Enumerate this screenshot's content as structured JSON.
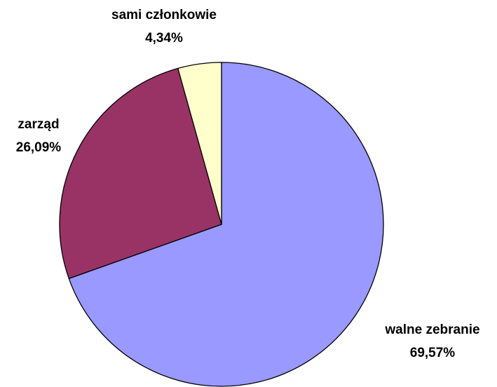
{
  "chart_data": {
    "type": "pie",
    "categories": [
      "walne zebranie",
      "zarząd",
      "sami członkowie"
    ],
    "values": [
      69.57,
      26.09,
      4.34
    ],
    "value_labels": [
      "69,57%",
      "26,09%",
      "4,34%"
    ],
    "colors": [
      "#9999ff",
      "#993366",
      "#ffffcc"
    ]
  }
}
